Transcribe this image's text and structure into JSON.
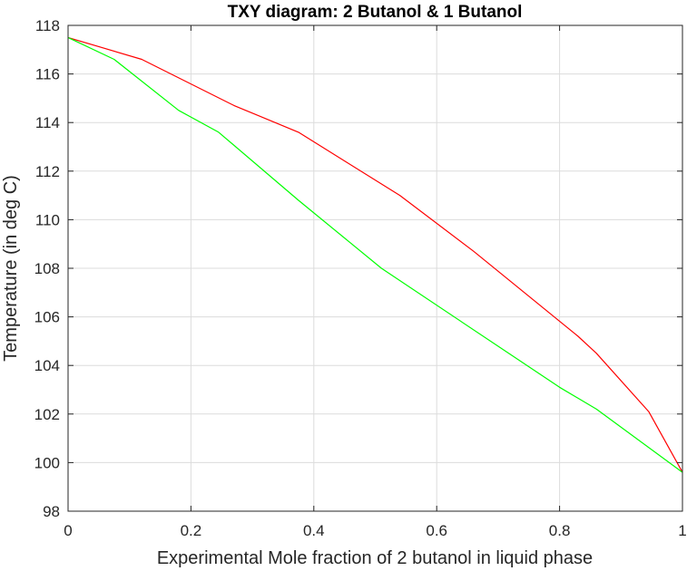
{
  "chart_data": {
    "type": "line",
    "title": "TXY diagram: 2 Butanol & 1 Butanol",
    "xlabel": "Experimental Mole fraction of 2 butanol in liquid phase",
    "ylabel": "Temperature (in deg C)",
    "xlim": [
      0,
      1
    ],
    "ylim": [
      98,
      118
    ],
    "xticks": [
      0,
      0.2,
      0.4,
      0.6,
      0.8,
      1
    ],
    "xtick_labels": [
      "0",
      "0.2",
      "0.4",
      "0.6",
      "0.8",
      "1"
    ],
    "yticks": [
      98,
      100,
      102,
      104,
      106,
      108,
      110,
      112,
      114,
      116,
      118
    ],
    "ytick_labels": [
      "98",
      "100",
      "102",
      "104",
      "106",
      "108",
      "110",
      "112",
      "114",
      "116",
      "118"
    ],
    "grid": true,
    "series": [
      {
        "color": "#ff0000",
        "x": [
          0,
          0.12,
          0.27,
          0.375,
          0.54,
          0.66,
          0.83,
          0.86,
          0.945,
          1.0
        ],
        "y": [
          117.5,
          116.6,
          114.7,
          113.6,
          111.0,
          108.7,
          105.2,
          104.5,
          102.1,
          99.6
        ]
      },
      {
        "color": "#00ff00",
        "x": [
          0,
          0.075,
          0.18,
          0.245,
          0.375,
          0.51,
          0.8,
          0.86,
          1.0
        ],
        "y": [
          117.5,
          116.6,
          114.5,
          113.6,
          110.8,
          108.0,
          103.1,
          102.2,
          99.6
        ]
      }
    ]
  }
}
